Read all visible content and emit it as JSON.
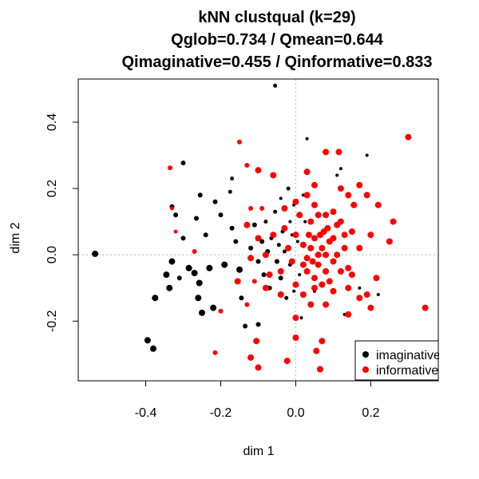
{
  "chart_data": {
    "type": "scatter",
    "title_lines": [
      "kNN clustqual (k=29)",
      "Qglob=0.734 / Qmean=0.644",
      "Qimaginative=0.455 / Qinformative=0.833"
    ],
    "xlabel": "dim 1",
    "ylabel": "dim 2",
    "xlim": [
      -0.58,
      0.38
    ],
    "ylim": [
      -0.38,
      0.53
    ],
    "xticks": [
      -0.4,
      -0.2,
      0.0,
      0.2
    ],
    "xtick_labels": [
      "-0.4",
      "-0.2",
      "0.0",
      "0.2"
    ],
    "yticks": [
      -0.2,
      0.0,
      0.2,
      0.4
    ],
    "ytick_labels": [
      "-0.2",
      "0.0",
      "0.2",
      "0.4"
    ],
    "reference_lines": {
      "x": 0,
      "y": 0,
      "style": "dotted",
      "color": "#bbbbbb"
    },
    "legend": {
      "position": "bottom-right",
      "entries": [
        {
          "label": "imaginative",
          "color": "#000000"
        },
        {
          "label": "informative",
          "color": "#ff0000"
        }
      ]
    },
    "series": [
      {
        "name": "imaginative",
        "color": "#000000",
        "points": [
          [
            -0.535,
            0.003,
            4
          ],
          [
            -0.395,
            -0.258,
            4
          ],
          [
            -0.38,
            -0.283,
            4
          ],
          [
            -0.375,
            -0.13,
            4
          ],
          [
            -0.345,
            -0.06,
            4
          ],
          [
            -0.337,
            -0.1,
            4
          ],
          [
            -0.33,
            -0.02,
            4
          ],
          [
            -0.33,
            0.145,
            3
          ],
          [
            -0.32,
            0.12,
            3
          ],
          [
            -0.3,
            0.277,
            3
          ],
          [
            -0.3,
            0.05,
            3
          ],
          [
            -0.285,
            -0.04,
            4
          ],
          [
            -0.27,
            -0.055,
            4
          ],
          [
            -0.265,
            0.11,
            3
          ],
          [
            -0.26,
            -0.13,
            4
          ],
          [
            -0.257,
            -0.085,
            4
          ],
          [
            -0.255,
            0.18,
            3
          ],
          [
            -0.25,
            -0.175,
            4
          ],
          [
            -0.24,
            0.06,
            3
          ],
          [
            -0.23,
            -0.04,
            4
          ],
          [
            -0.22,
            -0.16,
            4
          ],
          [
            -0.215,
            0.16,
            3
          ],
          [
            -0.2,
            0.12,
            3
          ],
          [
            -0.19,
            -0.03,
            4
          ],
          [
            -0.175,
            0.19,
            2.5
          ],
          [
            -0.17,
            0.23,
            2.5
          ],
          [
            -0.17,
            0.08,
            3
          ],
          [
            -0.16,
            0.04,
            3
          ],
          [
            -0.15,
            -0.045,
            4
          ],
          [
            -0.145,
            -0.13,
            3
          ],
          [
            -0.135,
            -0.215,
            3
          ],
          [
            -0.12,
            0.02,
            3
          ],
          [
            -0.11,
            0.09,
            3
          ],
          [
            -0.1,
            -0.02,
            3
          ],
          [
            -0.09,
            0.04,
            3
          ],
          [
            -0.085,
            -0.06,
            3
          ],
          [
            -0.08,
            0.1,
            2.5
          ],
          [
            -0.075,
            0.01,
            3
          ],
          [
            -0.07,
            -0.1,
            3
          ],
          [
            -0.065,
            0.05,
            2.5
          ],
          [
            -0.055,
            0.13,
            2.5
          ],
          [
            -0.05,
            -0.02,
            3
          ],
          [
            -0.045,
            0.03,
            2.5
          ],
          [
            -0.04,
            -0.07,
            3
          ],
          [
            -0.035,
            0.07,
            2.5
          ],
          [
            -0.03,
            0.01,
            2.5
          ],
          [
            -0.025,
            -0.13,
            2.5
          ],
          [
            -0.02,
            0.2,
            2.5
          ],
          [
            -0.015,
            0.1,
            2
          ],
          [
            -0.015,
            -0.03,
            2.5
          ],
          [
            -0.01,
            0.06,
            2
          ],
          [
            -0.005,
            -0.11,
            2
          ],
          [
            0.005,
            0.04,
            2
          ],
          [
            0.01,
            -0.06,
            2
          ],
          [
            0.015,
            -0.19,
            2
          ],
          [
            0.02,
            0.18,
            2
          ],
          [
            0.03,
            0.35,
            2
          ],
          [
            -0.055,
            0.51,
            2.5
          ],
          [
            -0.1,
            -0.21,
            3
          ],
          [
            -0.31,
            -0.07,
            3
          ],
          [
            0.12,
            0.26,
            2
          ],
          [
            0.19,
            0.3,
            2
          ],
          [
            0.22,
            -0.12,
            2
          ],
          [
            0.17,
            -0.1,
            2
          ],
          [
            0.025,
            0.1,
            2
          ],
          [
            -0.005,
            0.15,
            2
          ],
          [
            0.13,
            -0.18,
            2
          ],
          [
            0.11,
            0.24,
            2
          ],
          [
            0.05,
            -0.11,
            2
          ],
          [
            -0.04,
            0.17,
            2
          ]
        ]
      },
      {
        "name": "informative",
        "color": "#ff0000",
        "points": [
          [
            0.3,
            0.355,
            4
          ],
          [
            0.345,
            -0.16,
            4
          ],
          [
            0.08,
            0.31,
            4
          ],
          [
            0.115,
            0.31,
            4
          ],
          [
            -0.15,
            0.34,
            3
          ],
          [
            -0.13,
            0.27,
            3
          ],
          [
            -0.335,
            0.262,
            3
          ],
          [
            -0.33,
            0.14,
            2.5
          ],
          [
            -0.215,
            -0.295,
            3
          ],
          [
            -0.12,
            -0.31,
            4
          ],
          [
            -0.1,
            -0.34,
            4
          ],
          [
            -0.105,
            -0.26,
            4
          ],
          [
            -0.1,
            0.255,
            4
          ],
          [
            -0.06,
            0.24,
            4
          ],
          [
            -0.023,
            -0.32,
            4
          ],
          [
            0.065,
            -0.345,
            4
          ],
          [
            0.055,
            -0.29,
            4
          ],
          [
            0.0,
            -0.19,
            4
          ],
          [
            0.0,
            -0.25,
            4
          ],
          [
            0.07,
            -0.26,
            4
          ],
          [
            0.04,
            -0.15,
            4
          ],
          [
            0.08,
            -0.15,
            4
          ],
          [
            0.14,
            -0.18,
            4
          ],
          [
            0.17,
            -0.13,
            4
          ],
          [
            0.19,
            -0.12,
            4
          ],
          [
            0.215,
            -0.07,
            4
          ],
          [
            0.25,
            0.04,
            4
          ],
          [
            0.26,
            0.1,
            4
          ],
          [
            0.2,
            0.06,
            4
          ],
          [
            0.17,
            0.02,
            4
          ],
          [
            0.15,
            0.07,
            4
          ],
          [
            0.13,
            0.06,
            4
          ],
          [
            0.12,
            0.2,
            4
          ],
          [
            0.14,
            0.18,
            4
          ],
          [
            0.12,
            0.1,
            4
          ],
          [
            0.1,
            0.13,
            4
          ],
          [
            0.09,
            0.04,
            4
          ],
          [
            0.075,
            0.07,
            4
          ],
          [
            0.06,
            0.12,
            4
          ],
          [
            0.05,
            0.05,
            4
          ],
          [
            0.04,
            0.1,
            4
          ],
          [
            0.03,
            -0.01,
            4
          ],
          [
            0.02,
            0.03,
            4
          ],
          [
            0.01,
            0.12,
            4
          ],
          [
            0.0,
            0.06,
            4
          ],
          [
            -0.01,
            -0.02,
            4
          ],
          [
            -0.02,
            0.02,
            4
          ],
          [
            -0.03,
            0.08,
            4
          ],
          [
            -0.04,
            -0.05,
            4
          ],
          [
            0.03,
            -0.05,
            4
          ],
          [
            0.05,
            -0.07,
            4
          ],
          [
            0.06,
            -0.03,
            4
          ],
          [
            0.08,
            -0.05,
            4
          ],
          [
            0.09,
            -0.08,
            4
          ],
          [
            0.1,
            -0.02,
            4
          ],
          [
            0.11,
            0.0,
            4
          ],
          [
            0.12,
            -0.05,
            4
          ],
          [
            0.13,
            0.02,
            4
          ],
          [
            0.14,
            -0.04,
            4
          ],
          [
            0.15,
            -0.06,
            4
          ],
          [
            0.06,
            0.0,
            4
          ],
          [
            0.07,
            0.02,
            4
          ],
          [
            0.04,
            0.02,
            4
          ],
          [
            0.02,
            -0.03,
            4
          ],
          [
            0.08,
            0.0,
            4
          ],
          [
            0.1,
            0.05,
            4
          ],
          [
            0.05,
            0.15,
            4
          ],
          [
            0.03,
            0.18,
            4
          ],
          [
            0.08,
            0.12,
            4
          ],
          [
            0.11,
            0.09,
            4
          ],
          [
            0.0,
            0.16,
            4
          ],
          [
            -0.03,
            0.14,
            4
          ],
          [
            -0.06,
            0.06,
            4
          ],
          [
            -0.08,
            0.0,
            4
          ],
          [
            -0.1,
            0.05,
            4
          ],
          [
            -0.12,
            -0.01,
            4
          ],
          [
            -0.13,
            0.09,
            4
          ],
          [
            -0.155,
            -0.08,
            4
          ],
          [
            -0.07,
            -0.06,
            4
          ],
          [
            -0.08,
            -0.1,
            4
          ],
          [
            -0.04,
            -0.12,
            4
          ],
          [
            0.0,
            -0.09,
            4
          ],
          [
            0.02,
            -0.12,
            4
          ],
          [
            0.05,
            -0.1,
            4
          ],
          [
            0.1,
            -0.11,
            4
          ],
          [
            0.2,
            -0.16,
            4
          ],
          [
            0.19,
            0.18,
            4
          ],
          [
            0.155,
            0.15,
            4
          ],
          [
            0.17,
            0.21,
            4
          ],
          [
            0.22,
            0.15,
            4
          ],
          [
            0.05,
            0.21,
            4
          ],
          [
            0.03,
            0.25,
            4
          ],
          [
            -0.09,
            0.14,
            3
          ],
          [
            -0.12,
            0.14,
            3
          ],
          [
            -0.11,
            -0.08,
            3
          ],
          [
            -0.13,
            -0.15,
            3
          ],
          [
            -0.2,
            -0.17,
            3
          ],
          [
            -0.27,
            0.01,
            3
          ],
          [
            -0.32,
            0.07,
            2.5
          ],
          [
            0.14,
            -0.1,
            4
          ],
          [
            0.065,
            0.06,
            4
          ],
          [
            0.085,
            0.08,
            4
          ],
          [
            0.045,
            -0.02,
            4
          ],
          [
            0.035,
            0.06,
            4
          ],
          [
            0.07,
            -0.09,
            4
          ]
        ]
      }
    ]
  }
}
